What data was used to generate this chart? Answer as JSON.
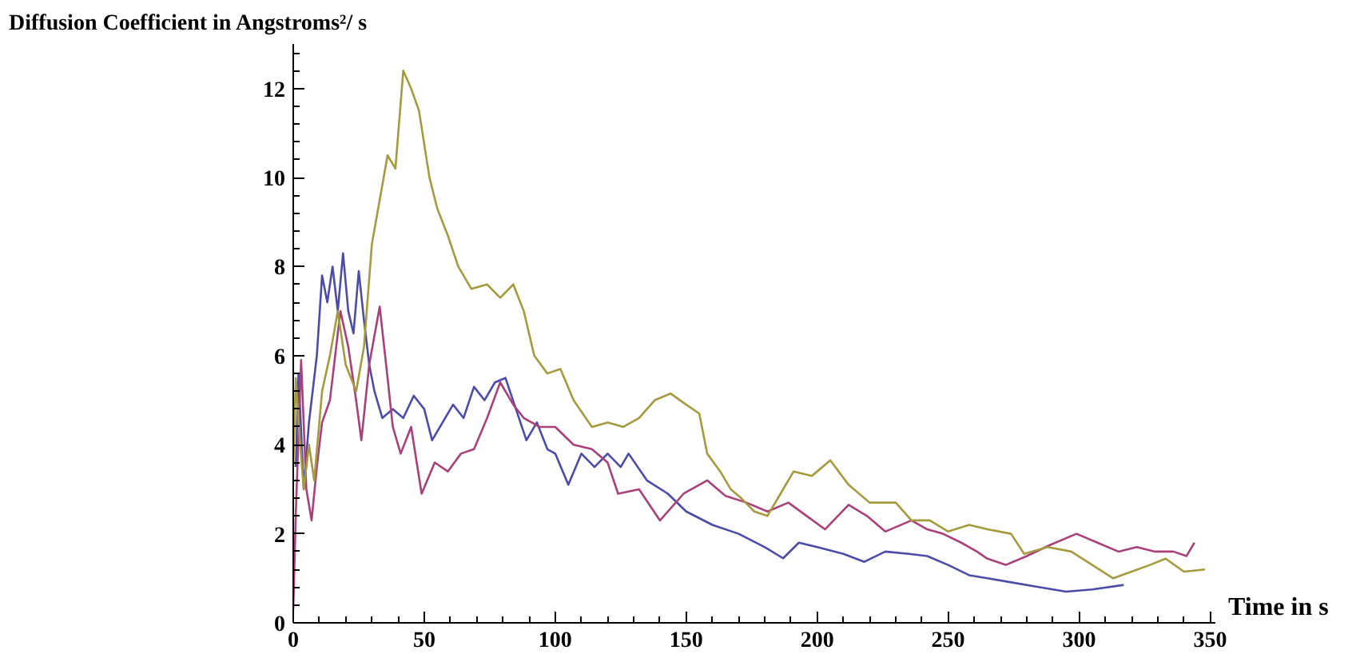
{
  "chart_data": {
    "type": "line",
    "xlabel": "Time in s",
    "ylabel": "Diffusion Coefficient in Angstroms²/ s",
    "xlim": [
      0,
      352
    ],
    "ylim": [
      0,
      13
    ],
    "xticks": [
      0,
      50,
      100,
      150,
      200,
      250,
      300,
      350
    ],
    "yticks": [
      0,
      2,
      4,
      6,
      8,
      10,
      12
    ],
    "grid": false,
    "marker": "none",
    "line_style": "solid",
    "series": [
      {
        "color": "#4b4ba8",
        "x": [
          1,
          2,
          4,
          6,
          9,
          11,
          13,
          15,
          17,
          19,
          21,
          23,
          25,
          27,
          29,
          31,
          34,
          38,
          42,
          46,
          50,
          53,
          57,
          61,
          65,
          69,
          73,
          77,
          81,
          85,
          89,
          93,
          97,
          100,
          105,
          110,
          115,
          120,
          125,
          128,
          135,
          143,
          150,
          160,
          170,
          180,
          187,
          193,
          200,
          210,
          218,
          226,
          235,
          242,
          250,
          258,
          265,
          275,
          285,
          295,
          305,
          317
        ],
        "values": [
          3.5,
          5.6,
          3.0,
          4.5,
          6.0,
          7.8,
          7.2,
          8.0,
          7.0,
          8.3,
          7.0,
          6.5,
          7.9,
          6.8,
          5.8,
          5.2,
          4.6,
          4.8,
          4.6,
          5.1,
          4.8,
          4.1,
          4.5,
          4.9,
          4.6,
          5.3,
          5.0,
          5.4,
          5.5,
          4.8,
          4.1,
          4.5,
          3.9,
          3.8,
          3.1,
          3.8,
          3.5,
          3.8,
          3.5,
          3.8,
          3.2,
          2.9,
          2.5,
          2.2,
          2.0,
          1.7,
          1.45,
          1.8,
          1.7,
          1.55,
          1.37,
          1.6,
          1.55,
          1.5,
          1.3,
          1.07,
          1.0,
          0.9,
          0.8,
          0.7,
          0.75,
          0.85
        ]
      },
      {
        "color": "#a8407a",
        "x": [
          0,
          1,
          3,
          5,
          7,
          9,
          11,
          14,
          16,
          18,
          21,
          24,
          26,
          29,
          33,
          36,
          38,
          41,
          45,
          49,
          54,
          59,
          64,
          69,
          74,
          79,
          84,
          88,
          94,
          100,
          107,
          114,
          120,
          124,
          132,
          140,
          149,
          158,
          165,
          173,
          181,
          189,
          196,
          203,
          212,
          219,
          226,
          236,
          242,
          248,
          255,
          261,
          265,
          272,
          280,
          289,
          299,
          307,
          315,
          322,
          329,
          336,
          341,
          344
        ],
        "values": [
          0.3,
          2.5,
          5.9,
          3.0,
          2.3,
          3.5,
          4.5,
          5.0,
          6.0,
          7.0,
          6.2,
          5.0,
          4.1,
          5.8,
          7.1,
          5.5,
          4.4,
          3.8,
          4.4,
          2.9,
          3.6,
          3.4,
          3.8,
          3.9,
          4.6,
          5.4,
          4.9,
          4.6,
          4.4,
          4.4,
          4.0,
          3.9,
          3.6,
          2.9,
          3.0,
          2.3,
          2.9,
          3.2,
          2.85,
          2.7,
          2.5,
          2.7,
          2.4,
          2.1,
          2.65,
          2.4,
          2.05,
          2.3,
          2.1,
          2.0,
          1.8,
          1.6,
          1.44,
          1.3,
          1.5,
          1.75,
          2.0,
          1.8,
          1.6,
          1.7,
          1.6,
          1.6,
          1.5,
          1.8
        ]
      },
      {
        "color": "#a59a3e",
        "x": [
          0,
          1,
          2,
          4,
          6,
          8,
          11,
          14,
          17,
          20,
          24,
          27,
          30,
          33,
          36,
          39,
          42,
          45,
          48,
          52,
          55,
          59,
          63,
          68,
          74,
          79,
          84,
          88,
          92,
          97,
          102,
          107,
          114,
          120,
          126,
          132,
          138,
          144,
          150,
          155,
          158,
          163,
          167,
          171,
          176,
          181,
          186,
          191,
          198,
          205,
          212,
          220,
          230,
          236,
          243,
          250,
          258,
          265,
          274,
          279,
          288,
          297,
          305,
          313,
          320,
          327,
          333,
          340,
          348
        ],
        "values": [
          3.5,
          5.5,
          4.5,
          3.0,
          4.0,
          3.2,
          5.2,
          6.0,
          7.0,
          5.8,
          5.2,
          6.2,
          8.5,
          9.5,
          10.5,
          10.2,
          12.4,
          12.0,
          11.5,
          10.0,
          9.3,
          8.7,
          8.0,
          7.5,
          7.6,
          7.3,
          7.6,
          7.0,
          6.0,
          5.6,
          5.7,
          5.0,
          4.4,
          4.5,
          4.4,
          4.6,
          5.0,
          5.15,
          4.9,
          4.7,
          3.8,
          3.4,
          3.0,
          2.8,
          2.5,
          2.4,
          2.9,
          3.4,
          3.3,
          3.65,
          3.1,
          2.7,
          2.7,
          2.3,
          2.3,
          2.05,
          2.2,
          2.1,
          2.0,
          1.55,
          1.7,
          1.6,
          1.3,
          1.0,
          1.15,
          1.3,
          1.44,
          1.15,
          1.2
        ]
      }
    ]
  }
}
